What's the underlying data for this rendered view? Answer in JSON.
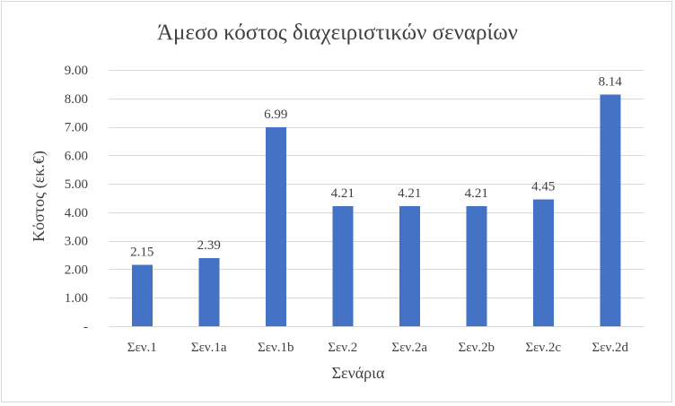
{
  "chart_data": {
    "type": "bar",
    "title": "Άμεσο κόστος διαχειριστικών σεναρίων",
    "xlabel": "Σενάρια",
    "ylabel": "Κόστος (εκ.€)",
    "categories": [
      "Σεν.1",
      "Σεν.1a",
      "Σεν.1b",
      "Σεν.2",
      "Σεν.2a",
      "Σεν.2b",
      "Σεν.2c",
      "Σεν.2d"
    ],
    "values": [
      2.15,
      2.39,
      6.99,
      4.21,
      4.21,
      4.21,
      4.45,
      8.14
    ],
    "data_labels": [
      "2.15",
      "2.39",
      "6.99",
      "4.21",
      "4.21",
      "4.21",
      "4.45",
      "8.14"
    ],
    "ylim": [
      0,
      9
    ],
    "yticks": [
      0,
      1,
      2,
      3,
      4,
      5,
      6,
      7,
      8,
      9
    ],
    "ytick_labels": [
      "-",
      "1.00",
      "2.00",
      "3.00",
      "4.00",
      "5.00",
      "6.00",
      "7.00",
      "8.00",
      "9.00"
    ],
    "grid": true,
    "legend": "none",
    "bar_color": "#4472c4"
  }
}
